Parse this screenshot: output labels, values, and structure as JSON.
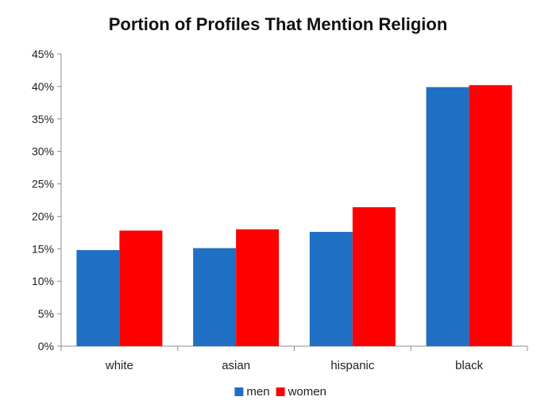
{
  "chart_data": {
    "type": "bar",
    "title": "Portion of Profiles That Mention Religion",
    "xlabel": "",
    "ylabel": "",
    "categories": [
      "white",
      "asian",
      "hispanic",
      "black"
    ],
    "series": [
      {
        "name": "men",
        "color": "#1f6fc5",
        "values": [
          14.8,
          15.1,
          17.6,
          39.9
        ]
      },
      {
        "name": "women",
        "color": "#ff0000",
        "values": [
          17.8,
          18.0,
          21.4,
          40.2
        ]
      }
    ],
    "ylim": [
      0,
      45
    ],
    "yticks": [
      0,
      5,
      10,
      15,
      20,
      25,
      30,
      35,
      40,
      45
    ],
    "ytick_labels": [
      "0%",
      "5%",
      "10%",
      "15%",
      "20%",
      "25%",
      "30%",
      "35%",
      "40%",
      "45%"
    ],
    "grid": false,
    "legend_position": "bottom"
  }
}
